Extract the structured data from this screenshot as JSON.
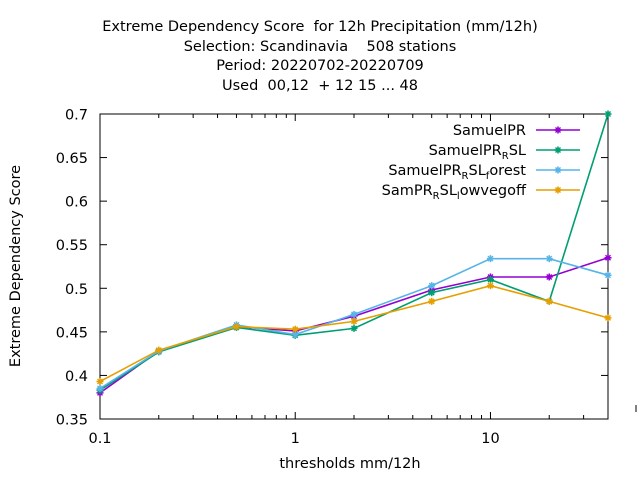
{
  "title_lines": [
    "Extreme Dependency Score  for 12h Precipitation (mm/12h)",
    "Selection: Scandinavia    508 stations",
    "Period: 20220702-20220709",
    "Used  00,12  + 12 15 ... 48"
  ],
  "chart_data": {
    "type": "line",
    "title": "Extreme Dependency Score  for 12h Precipitation (mm/12h)",
    "xlabel": "thresholds mm/12h",
    "ylabel": "Extreme Dependency Score",
    "xscale": "log",
    "xlim": [
      0.1,
      40
    ],
    "ylim": [
      0.35,
      0.7
    ],
    "xticks": [
      0.1,
      1,
      10
    ],
    "xtick_labels": [
      "0.1",
      "1",
      "10"
    ],
    "yticks": [
      0.35,
      0.4,
      0.45,
      0.5,
      0.55,
      0.6,
      0.65,
      0.7
    ],
    "ytick_labels": [
      "0.35",
      "0.4",
      "0.45",
      "0.5",
      "0.55",
      "0.6",
      "0.65",
      "0.7"
    ],
    "grid": false,
    "legend_position": "top-right",
    "x": [
      0.1,
      0.2,
      0.5,
      1,
      2,
      5,
      10,
      20,
      40
    ],
    "series": [
      {
        "name": "SamuelPR",
        "color": "#9400d3",
        "values": [
          0.38,
          0.428,
          0.456,
          0.451,
          0.468,
          0.498,
          0.513,
          0.513,
          0.535
        ]
      },
      {
        "name": "SamuelPR_R SL",
        "name_main": "SamuelPR",
        "name_sub": "R",
        "name_tail": "SL",
        "color": "#009e73",
        "values": [
          0.383,
          0.427,
          0.455,
          0.446,
          0.454,
          0.495,
          0.51,
          0.485,
          0.7
        ]
      },
      {
        "name": "SamuelPR_R SL_f orest",
        "name_main": "SamuelPR",
        "name_sub": "R",
        "name_tail": "SL",
        "name_sub2": "f",
        "name_tail2": "orest",
        "color": "#56b4e9",
        "values": [
          0.385,
          0.428,
          0.458,
          0.447,
          0.47,
          0.503,
          0.534,
          0.534,
          0.515
        ]
      },
      {
        "name": "SamPR_R SL_l owvegoff",
        "name_main": "SamPR",
        "name_sub": "R",
        "name_tail": "SL",
        "name_sub2": "l",
        "name_tail2": "owvegoff",
        "color": "#e69f00",
        "values": [
          0.393,
          0.429,
          0.456,
          0.453,
          0.462,
          0.485,
          0.503,
          0.485,
          0.466
        ]
      }
    ]
  }
}
